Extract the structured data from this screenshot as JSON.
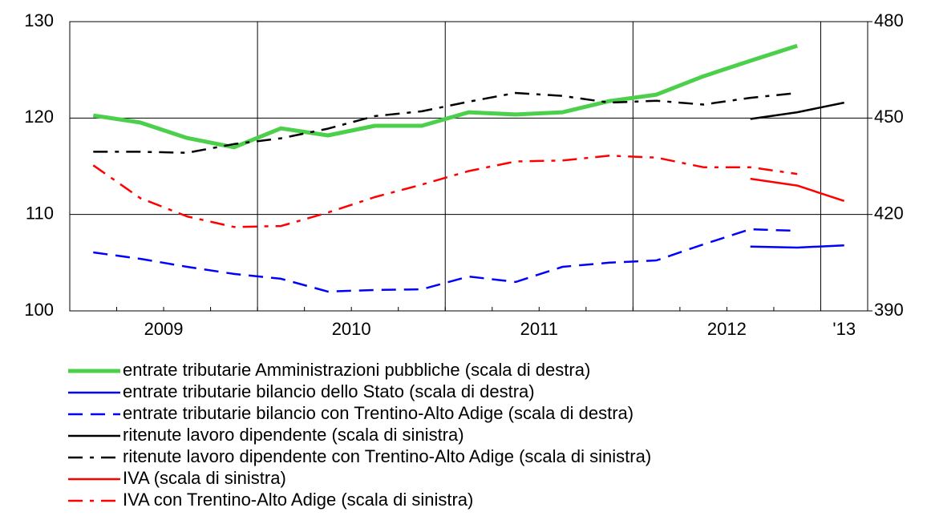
{
  "chart_data": {
    "type": "line",
    "categories": [
      null,
      null,
      null,
      null,
      null,
      null,
      null,
      null,
      null,
      null,
      null,
      null,
      null,
      null,
      null,
      null,
      null
    ],
    "year_labels": [
      "2009",
      "2010",
      "2011",
      "2012",
      "'13"
    ],
    "ylim": [
      100,
      130
    ],
    "yticks": [
      100,
      110,
      120,
      130
    ],
    "y2lim": [
      390,
      480
    ],
    "y2ticks": [
      390,
      420,
      450,
      480
    ],
    "grid": true,
    "series": [
      {
        "name": "entrate tributarie Amministrazioni pubbliche (scala di destra)",
        "color": "#4cd04c",
        "axis": "y2",
        "dash": "solid",
        "line_width": 5,
        "values": [
          450.8,
          448.6,
          443.8,
          440.9,
          446.8,
          444.6,
          447.6,
          447.6,
          451.8,
          451.1,
          451.8,
          455.3,
          457.3,
          463.0,
          467.8,
          472.5,
          null
        ]
      },
      {
        "name": "entrate tributarie bilancio dello Stato (scala di destra)",
        "color": "#0000ff",
        "axis": "y2",
        "dash": "solid",
        "line_width": 2.5,
        "values": [
          null,
          null,
          null,
          null,
          null,
          null,
          null,
          null,
          null,
          null,
          null,
          null,
          null,
          null,
          410.0,
          409.7,
          410.4
        ]
      },
      {
        "name": "entrate tributarie bilancio con Trentino-Alto Adige (scala di destra)",
        "color": "#0000ff",
        "axis": "y2",
        "dash": "dashed",
        "line_width": 2.5,
        "values": [
          408.2,
          406.2,
          403.7,
          401.5,
          400.0,
          396.0,
          396.5,
          396.7,
          400.7,
          399.0,
          403.7,
          405.0,
          405.7,
          410.7,
          415.4,
          414.9,
          null
        ]
      },
      {
        "name": "ritenute lavoro dipendente (scala di sinistra)",
        "color": "#000000",
        "axis": "y",
        "dash": "solid",
        "line_width": 2.5,
        "values": [
          null,
          null,
          null,
          null,
          null,
          null,
          null,
          null,
          null,
          null,
          null,
          null,
          null,
          null,
          119.9,
          120.6,
          121.6
        ]
      },
      {
        "name": "ritenute lavoro dipendente con Trentino-Alto Adige (scala di sinistra)",
        "color": "#000000",
        "axis": "y",
        "dash": "dashdot",
        "line_width": 2.5,
        "values": [
          116.5,
          116.5,
          116.4,
          117.3,
          117.9,
          118.9,
          120.2,
          120.7,
          121.7,
          122.6,
          122.3,
          121.6,
          121.8,
          121.4,
          122.1,
          122.6,
          null
        ]
      },
      {
        "name": "IVA (scala di sinistra)",
        "color": "#ff0000",
        "axis": "y",
        "dash": "solid",
        "line_width": 2.5,
        "values": [
          null,
          null,
          null,
          null,
          null,
          null,
          null,
          null,
          null,
          null,
          null,
          null,
          null,
          null,
          113.7,
          113.0,
          111.4
        ]
      },
      {
        "name": "IVA con Trentino-Alto Adige (scala di sinistra)",
        "color": "#ff0000",
        "axis": "y",
        "dash": "dashdot",
        "line_width": 2.5,
        "values": [
          115.1,
          111.7,
          109.8,
          108.7,
          108.8,
          110.2,
          111.8,
          113.1,
          114.5,
          115.5,
          115.6,
          116.1,
          115.9,
          114.9,
          114.9,
          114.2,
          null
        ]
      }
    ]
  }
}
